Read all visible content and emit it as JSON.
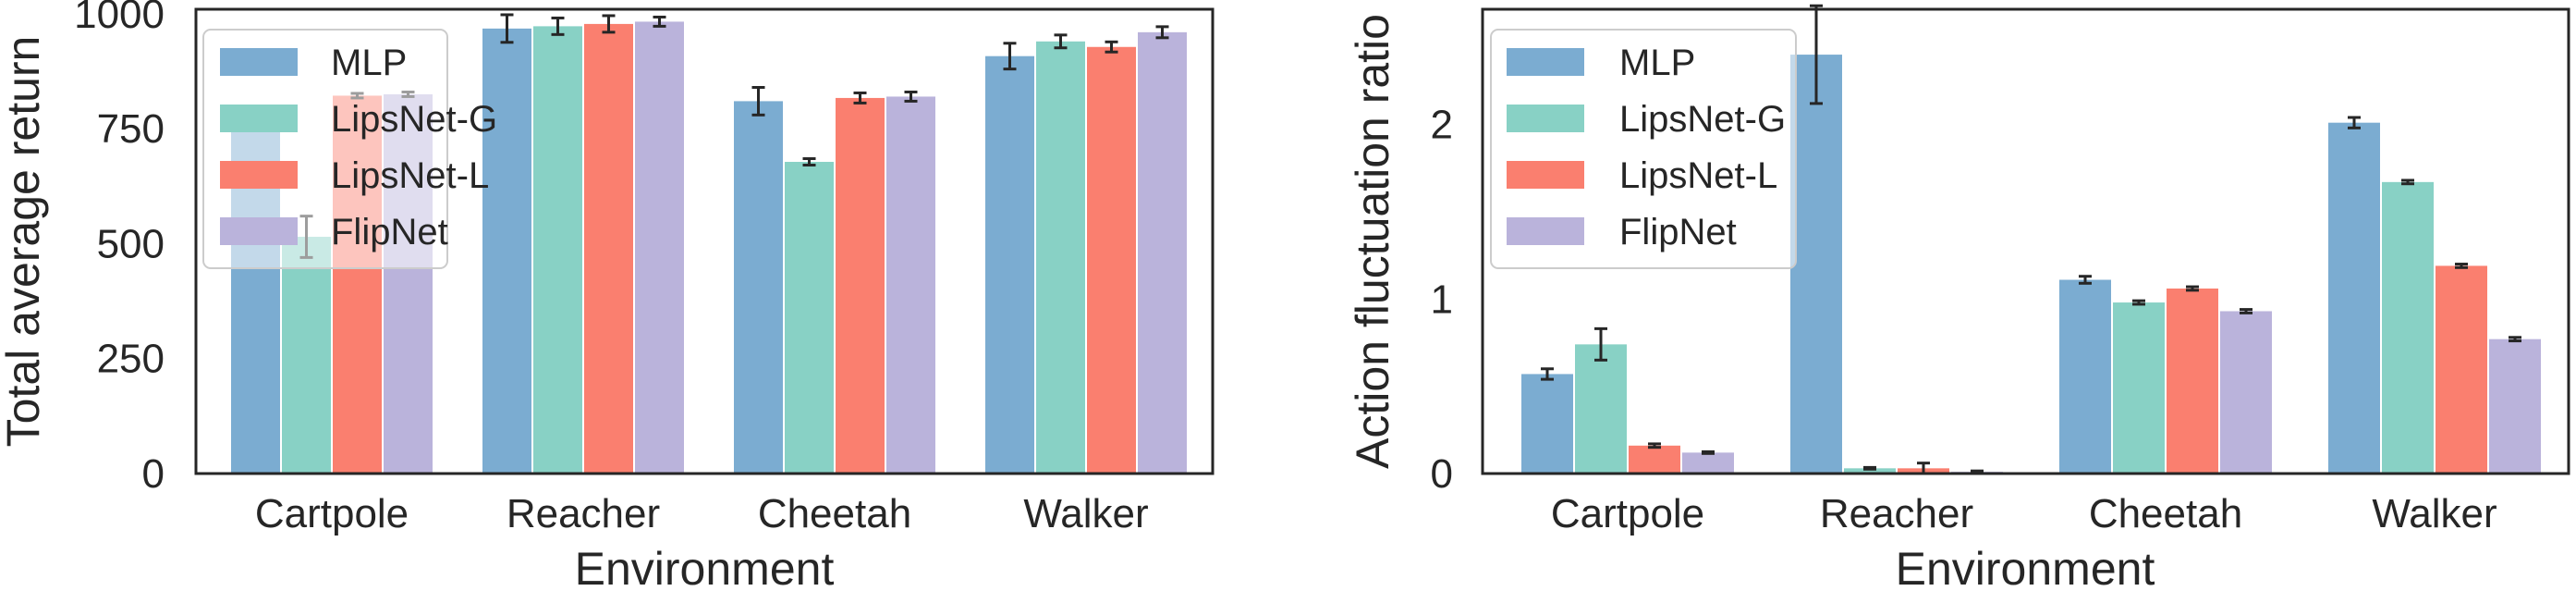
{
  "colors": {
    "MLP": "#7bacd1",
    "LipsNet-G": "#88d1c5",
    "LipsNet-L": "#fa7f6f",
    "FlipNet": "#bab3db",
    "errorbar": "#262626",
    "axes": "#262626"
  },
  "chart_data": [
    {
      "type": "bar",
      "categories": [
        "Cartpole",
        "Reacher",
        "Cheetah",
        "Walker"
      ],
      "xlabel": "Environment",
      "ylabel": "Total average return",
      "ylim": [
        0,
        1010
      ],
      "yticks": [
        0,
        250,
        500,
        750,
        1000
      ],
      "ytick_labels": [
        "0",
        "250",
        "500",
        "750",
        "1000"
      ],
      "grid": false,
      "legend_position": "upper-left",
      "series": [
        {
          "name": "MLP",
          "values": [
            755,
            968,
            810,
            908
          ],
          "errors": [
            6,
            30,
            30,
            28
          ]
        },
        {
          "name": "LipsNet-G",
          "values": [
            515,
            973,
            678,
            940
          ],
          "errors": [
            45,
            18,
            7,
            14
          ]
        },
        {
          "name": "LipsNet-L",
          "values": [
            822,
            978,
            817,
            928
          ],
          "errors": [
            5,
            18,
            11,
            11
          ]
        },
        {
          "name": "FlipNet",
          "values": [
            825,
            983,
            820,
            960
          ],
          "errors": [
            5,
            10,
            10,
            12
          ]
        }
      ]
    },
    {
      "type": "bar",
      "categories": [
        "Cartpole",
        "Reacher",
        "Cheetah",
        "Walker"
      ],
      "xlabel": "Environment",
      "ylabel": "Action fluctuation ratio",
      "ylim": [
        0,
        2.66
      ],
      "yticks": [
        0,
        1,
        2
      ],
      "ytick_labels": [
        "0",
        "1",
        "2"
      ],
      "grid": false,
      "legend_position": "upper-left",
      "series": [
        {
          "name": "MLP",
          "values": [
            0.57,
            2.4,
            1.11,
            2.01
          ],
          "errors": [
            0.03,
            0.28,
            0.02,
            0.03
          ]
        },
        {
          "name": "LipsNet-G",
          "values": [
            0.74,
            0.03,
            0.98,
            1.67
          ],
          "errors": [
            0.09,
            0.005,
            0.01,
            0.01
          ]
        },
        {
          "name": "LipsNet-L",
          "values": [
            0.16,
            0.03,
            1.06,
            1.19
          ],
          "errors": [
            0.01,
            0.03,
            0.01,
            0.01
          ]
        },
        {
          "name": "FlipNet",
          "values": [
            0.12,
            0.01,
            0.93,
            0.77
          ],
          "errors": [
            0.005,
            0.005,
            0.01,
            0.01
          ]
        }
      ]
    }
  ]
}
